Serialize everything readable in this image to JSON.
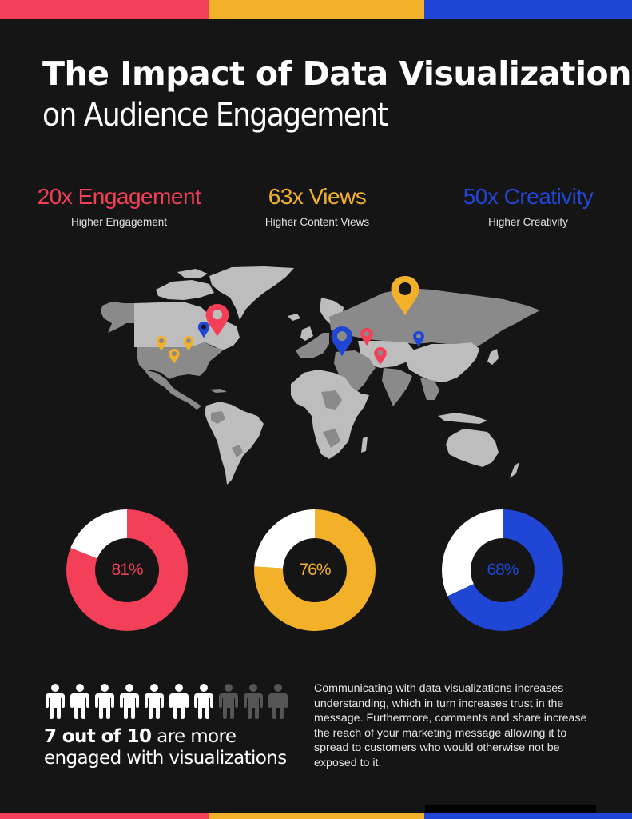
{
  "colors": {
    "background": "#151515",
    "red": "#f33f57",
    "yellow": "#f3b12a",
    "blue": "#1f46d4",
    "white": "#ffffff",
    "map_light": "#bdbdbd",
    "map_mid": "#8a8a8a",
    "person_inactive": "#555555"
  },
  "title": {
    "line1": "The Impact of Data Visualization",
    "line2": "on Audience Engagement"
  },
  "stats": [
    {
      "value": "20x Engagement",
      "label": "Higher Engagement",
      "color": "#f33f57"
    },
    {
      "value": "63x Views",
      "label": "Higher Content Views",
      "color": "#f3b12a"
    },
    {
      "value": "50x Creativity",
      "label": "Higher Creativity",
      "color": "#1f46d4"
    }
  ],
  "map": {
    "type": "world-map",
    "pins": [
      {
        "region": "Canada (east)",
        "color": "red",
        "size": "large"
      },
      {
        "region": "Canada (central)",
        "color": "blue",
        "size": "small"
      },
      {
        "region": "USA (northwest)",
        "color": "yellow",
        "size": "small"
      },
      {
        "region": "USA (north-central)",
        "color": "yellow",
        "size": "small"
      },
      {
        "region": "USA (southwest)",
        "color": "yellow",
        "size": "small"
      },
      {
        "region": "Russia (north)",
        "color": "yellow",
        "size": "large"
      },
      {
        "region": "Eastern Europe / Black Sea",
        "color": "blue",
        "size": "large"
      },
      {
        "region": "Kazakhstan (west)",
        "color": "red",
        "size": "small"
      },
      {
        "region": "Turkmenistan / Iran",
        "color": "red",
        "size": "small"
      },
      {
        "region": "Mongolia / Russia border",
        "color": "blue",
        "size": "small"
      }
    ]
  },
  "chart_data": {
    "type": "pie",
    "title": "",
    "series": [
      {
        "name": "Red donut",
        "value": 81,
        "remainder": 19,
        "label": "81%",
        "color": "#f33f57"
      },
      {
        "name": "Yellow donut",
        "value": 76,
        "remainder": 24,
        "label": "76%",
        "color": "#f3b12a"
      },
      {
        "name": "Blue donut",
        "value": 68,
        "remainder": 32,
        "label": "68%",
        "color": "#1f46d4"
      }
    ],
    "style": "donut",
    "remainder_color": "#ffffff"
  },
  "donuts": [
    {
      "value": 81,
      "label": "81%",
      "color": "#f33f57"
    },
    {
      "value": 76,
      "label": "76%",
      "color": "#f3b12a"
    },
    {
      "value": 68,
      "label": "68%",
      "color": "#1f46d4"
    }
  ],
  "people": {
    "active": 7,
    "total": 10,
    "caption_bold": "7 out of 10",
    "caption_rest_line1": " are more",
    "caption_line2": "engaged with visualizations"
  },
  "paragraph": "Communicating with data visualizations increases understanding, which in turn increases trust in the message. Furthermore, comments and share increase the reach of your marketing message allowing it to spread to customers who would otherwise not be exposed to it."
}
